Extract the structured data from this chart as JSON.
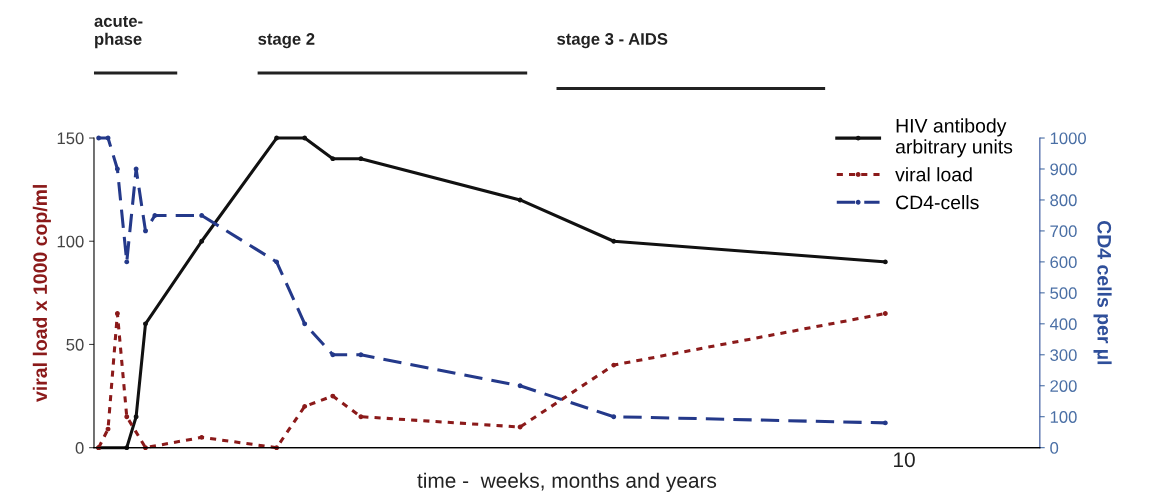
{
  "chart_data": {
    "type": "line",
    "xlabel": "time -  weeks, months and years",
    "ylabel": "viral load x 1000 cop/ml",
    "y2label": "CD4 cells per µl",
    "categories": [
      null,
      null,
      null,
      null,
      null,
      null,
      null,
      null,
      null,
      null,
      null,
      null,
      null,
      null,
      null,
      null,
      null,
      null,
      null,
      null,
      null,
      null,
      null,
      null,
      null,
      null,
      null,
      null,
      null,
      null,
      null,
      null,
      null,
      null,
      null,
      null,
      null,
      null,
      null,
      null,
      null,
      null,
      null,
      null,
      null,
      null,
      null,
      null,
      null,
      null,
      null,
      null,
      null,
      null,
      null,
      null,
      null,
      null,
      null,
      null,
      null,
      null,
      null,
      null,
      null,
      null,
      null,
      null,
      null,
      null,
      null,
      null,
      null,
      null,
      null,
      null,
      null,
      null,
      null,
      null,
      null,
      null,
      null,
      null,
      null,
      null,
      "10",
      null,
      null,
      null,
      null,
      null,
      null,
      null,
      null,
      null,
      null,
      null,
      null,
      null,
      null
    ],
    "ylim": [
      0,
      150
    ],
    "yticks": [
      0,
      50,
      100,
      150
    ],
    "y2lim": [
      0,
      1000
    ],
    "y2ticks": [
      0,
      100,
      200,
      300,
      400,
      500,
      600,
      700,
      800,
      900,
      1000
    ],
    "grid": false,
    "legend": "top right",
    "marker": "circle",
    "annotations": [
      "acute-\nphase",
      "stage 2",
      "stage 3 - AIDS"
    ],
    "series": [
      {
        "name": "HIV antibody\narbitrary units",
        "color": "#111111",
        "line_style": "solid",
        "values": [
          0,
          null,
          null,
          0,
          15,
          60,
          null,
          null,
          null,
          null,
          null,
          100,
          null,
          null,
          null,
          null,
          null,
          null,
          null,
          150,
          null,
          null,
          150,
          null,
          null,
          140,
          null,
          null,
          140,
          null,
          null,
          null,
          null,
          null,
          null,
          null,
          null,
          null,
          null,
          null,
          null,
          null,
          null,
          null,
          null,
          120,
          null,
          null,
          null,
          null,
          null,
          null,
          null,
          null,
          null,
          100,
          null,
          null,
          null,
          null,
          null,
          null,
          null,
          null,
          null,
          null,
          null,
          null,
          null,
          null,
          null,
          null,
          null,
          null,
          null,
          null,
          null,
          null,
          null,
          null,
          null,
          null,
          null,
          null,
          90,
          null,
          null,
          null,
          null,
          null,
          null,
          null,
          null,
          null,
          null,
          null,
          null,
          null,
          null,
          null,
          null
        ]
      },
      {
        "name": "viral load",
        "color": "#8b1a1a",
        "line_style": "dotted",
        "values": [
          0,
          9,
          65,
          15,
          null,
          0,
          null,
          null,
          null,
          null,
          null,
          5,
          null,
          null,
          null,
          null,
          null,
          null,
          null,
          0,
          null,
          null,
          20,
          null,
          null,
          25,
          null,
          null,
          15,
          null,
          null,
          null,
          null,
          null,
          null,
          null,
          null,
          null,
          null,
          null,
          null,
          null,
          null,
          null,
          null,
          10,
          null,
          null,
          null,
          null,
          null,
          null,
          null,
          null,
          null,
          40,
          null,
          null,
          null,
          null,
          null,
          null,
          null,
          null,
          null,
          null,
          null,
          null,
          null,
          null,
          null,
          null,
          null,
          null,
          null,
          null,
          null,
          null,
          null,
          null,
          null,
          null,
          null,
          null,
          65,
          null,
          null,
          null,
          null,
          null,
          null,
          null,
          null,
          null,
          null,
          null,
          null,
          null,
          null,
          null,
          null
        ]
      },
      {
        "name": "CD4-cells",
        "color": "#24398a",
        "line_style": "dashed",
        "axis": "y2",
        "values": [
          1000,
          1000,
          900,
          600,
          900,
          700,
          750,
          null,
          null,
          null,
          null,
          750,
          null,
          null,
          null,
          null,
          null,
          null,
          null,
          600,
          null,
          null,
          400,
          null,
          null,
          300,
          null,
          null,
          300,
          null,
          null,
          null,
          null,
          null,
          null,
          null,
          null,
          null,
          null,
          null,
          null,
          null,
          null,
          null,
          null,
          200,
          null,
          null,
          null,
          null,
          null,
          null,
          null,
          null,
          null,
          100,
          null,
          null,
          null,
          null,
          null,
          null,
          null,
          null,
          null,
          null,
          null,
          null,
          null,
          null,
          null,
          null,
          null,
          null,
          null,
          null,
          null,
          null,
          null,
          null,
          null,
          null,
          null,
          null,
          80,
          null,
          null,
          null,
          null,
          null,
          null,
          null,
          null,
          null,
          null,
          null,
          null,
          null,
          null,
          null,
          null
        ]
      }
    ]
  }
}
